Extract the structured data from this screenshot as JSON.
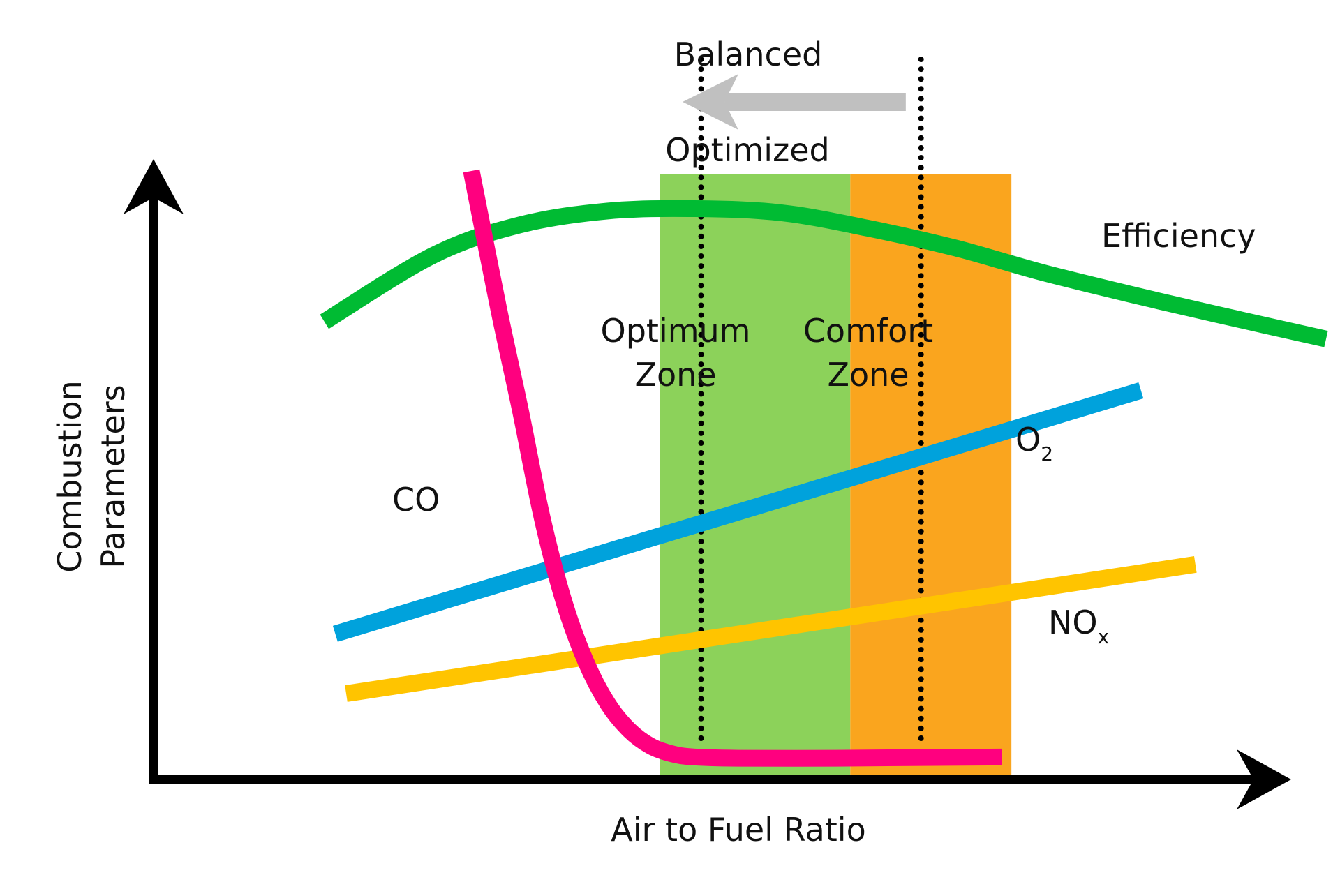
{
  "chart_data": {
    "type": "line",
    "xlabel": "Air to Fuel Ratio",
    "ylabel_lines": [
      "Combustion",
      "Parameters"
    ],
    "x_range": [
      0,
      100
    ],
    "y_range": [
      0,
      100
    ],
    "zones": [
      {
        "name_lines": [
          "Optimum",
          "Zone"
        ],
        "x_start": 38.8,
        "x_end": 56.3,
        "color": "#8cd25a"
      },
      {
        "name_lines": [
          "Comfort",
          "Zone"
        ],
        "x_start": 56.3,
        "x_end": 71.1,
        "color": "#faa51e"
      }
    ],
    "reference_lines": [
      {
        "name": "optimized",
        "x": 42.6
      },
      {
        "name": "balanced",
        "x": 62.8
      }
    ],
    "shift_arrow": {
      "from_x": 61.4,
      "to_x": 40.9,
      "color": "#c0c0c0",
      "label_top": "Balanced",
      "label_bottom": "Optimized"
    },
    "series": [
      {
        "name": "Efficiency",
        "color": "#00bb33",
        "points": [
          [
            8,
            74.8
          ],
          [
            18,
            85.9
          ],
          [
            26,
            91.0
          ],
          [
            34,
            93.3
          ],
          [
            42,
            93.7
          ],
          [
            50,
            93.0
          ],
          [
            58,
            90.4
          ],
          [
            66,
            87.1
          ],
          [
            74,
            83.0
          ],
          [
            82,
            79.4
          ],
          [
            90,
            76.0
          ],
          [
            100,
            71.9
          ]
        ]
      },
      {
        "name": "O",
        "name_subscript": "2",
        "color": "#00a2dc",
        "points": [
          [
            9,
            22.6
          ],
          [
            83,
            63.3
          ]
        ]
      },
      {
        "name": "NO",
        "name_subscript": "x",
        "color": "#ffc400",
        "points": [
          [
            10,
            12.6
          ],
          [
            88,
            34.2
          ]
        ]
      },
      {
        "name": "CO",
        "color": "#ff007f",
        "points": [
          [
            21.5,
            100
          ],
          [
            24,
            77
          ],
          [
            26,
            60
          ],
          [
            28,
            42
          ],
          [
            30,
            28
          ],
          [
            32,
            18
          ],
          [
            34,
            11
          ],
          [
            36,
            6.5
          ],
          [
            38,
            3.8
          ],
          [
            40,
            2.5
          ],
          [
            42,
            2.0
          ],
          [
            46,
            1.8
          ],
          [
            55,
            1.8
          ],
          [
            62,
            1.9
          ],
          [
            70.2,
            2.0
          ]
        ]
      }
    ]
  }
}
